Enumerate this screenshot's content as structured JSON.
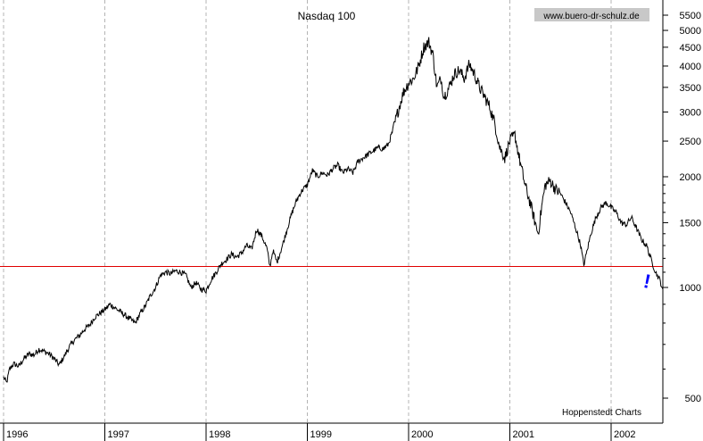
{
  "chart_data": {
    "type": "line",
    "title": "Nasdaq 100",
    "watermark": "www.buero-dr-schulz.de",
    "source": "Hoppenstedt Charts",
    "y_scale": "log",
    "ylim": [
      450,
      6000
    ],
    "xlim": [
      1996.0,
      2002.52
    ],
    "y_ticks": [
      500,
      1000,
      1500,
      2000,
      2500,
      3000,
      3500,
      4000,
      4500,
      5000,
      5500
    ],
    "x_ticks": [
      {
        "label": "1996",
        "year": 1996
      },
      {
        "label": "1997",
        "year": 1997
      },
      {
        "label": "1998",
        "year": 1998
      },
      {
        "label": "1999",
        "year": 1999
      },
      {
        "label": "2000",
        "year": 2000
      },
      {
        "label": "2001",
        "year": 2001
      },
      {
        "label": "2002",
        "year": 2002
      }
    ],
    "grid": "vertical dashed at year boundaries",
    "series": [
      {
        "color": "#000000",
        "points": [
          [
            1996.0,
            570
          ],
          [
            1996.03,
            550
          ],
          [
            1996.06,
            600
          ],
          [
            1996.1,
            620
          ],
          [
            1996.15,
            610
          ],
          [
            1996.2,
            640
          ],
          [
            1996.25,
            660
          ],
          [
            1996.3,
            655
          ],
          [
            1996.35,
            680
          ],
          [
            1996.4,
            670
          ],
          [
            1996.45,
            660
          ],
          [
            1996.5,
            640
          ],
          [
            1996.55,
            615
          ],
          [
            1996.6,
            650
          ],
          [
            1996.65,
            690
          ],
          [
            1996.7,
            720
          ],
          [
            1996.75,
            740
          ],
          [
            1996.8,
            770
          ],
          [
            1996.85,
            790
          ],
          [
            1996.9,
            830
          ],
          [
            1996.95,
            850
          ],
          [
            1997.0,
            870
          ],
          [
            1997.05,
            900
          ],
          [
            1997.1,
            880
          ],
          [
            1997.15,
            860
          ],
          [
            1997.2,
            840
          ],
          [
            1997.25,
            820
          ],
          [
            1997.3,
            800
          ],
          [
            1997.35,
            850
          ],
          [
            1997.4,
            890
          ],
          [
            1997.45,
            950
          ],
          [
            1997.5,
            1000
          ],
          [
            1997.55,
            1080
          ],
          [
            1997.6,
            1100
          ],
          [
            1997.65,
            1090
          ],
          [
            1997.7,
            1110
          ],
          [
            1997.75,
            1100
          ],
          [
            1997.8,
            1080
          ],
          [
            1997.85,
            1000
          ],
          [
            1997.9,
            1030
          ],
          [
            1997.95,
            990
          ],
          [
            1998.0,
            980
          ],
          [
            1998.05,
            1050
          ],
          [
            1998.1,
            1100
          ],
          [
            1998.15,
            1160
          ],
          [
            1998.2,
            1190
          ],
          [
            1998.25,
            1230
          ],
          [
            1998.3,
            1210
          ],
          [
            1998.35,
            1240
          ],
          [
            1998.4,
            1300
          ],
          [
            1998.45,
            1270
          ],
          [
            1998.5,
            1440
          ],
          [
            1998.55,
            1380
          ],
          [
            1998.6,
            1280
          ],
          [
            1998.63,
            1140
          ],
          [
            1998.66,
            1260
          ],
          [
            1998.7,
            1170
          ],
          [
            1998.75,
            1290
          ],
          [
            1998.8,
            1440
          ],
          [
            1998.85,
            1600
          ],
          [
            1998.9,
            1740
          ],
          [
            1998.95,
            1840
          ],
          [
            1999.0,
            1900
          ],
          [
            1999.05,
            2080
          ],
          [
            1999.1,
            2000
          ],
          [
            1999.15,
            2050
          ],
          [
            1999.2,
            2020
          ],
          [
            1999.25,
            2100
          ],
          [
            1999.3,
            2150
          ],
          [
            1999.35,
            2050
          ],
          [
            1999.4,
            2100
          ],
          [
            1999.45,
            2050
          ],
          [
            1999.5,
            2200
          ],
          [
            1999.55,
            2250
          ],
          [
            1999.6,
            2300
          ],
          [
            1999.65,
            2350
          ],
          [
            1999.7,
            2400
          ],
          [
            1999.75,
            2380
          ],
          [
            1999.8,
            2450
          ],
          [
            1999.85,
            2700
          ],
          [
            1999.9,
            3050
          ],
          [
            1999.95,
            3400
          ],
          [
            2000.0,
            3600
          ],
          [
            2000.05,
            3700
          ],
          [
            2000.1,
            4000
          ],
          [
            2000.15,
            4500
          ],
          [
            2000.2,
            4650
          ],
          [
            2000.24,
            4300
          ],
          [
            2000.28,
            3500
          ],
          [
            2000.32,
            3700
          ],
          [
            2000.35,
            3300
          ],
          [
            2000.4,
            3500
          ],
          [
            2000.45,
            3800
          ],
          [
            2000.5,
            3900
          ],
          [
            2000.55,
            3700
          ],
          [
            2000.6,
            4050
          ],
          [
            2000.65,
            3800
          ],
          [
            2000.7,
            3500
          ],
          [
            2000.75,
            3300
          ],
          [
            2000.8,
            3100
          ],
          [
            2000.85,
            2800
          ],
          [
            2000.9,
            2400
          ],
          [
            2000.95,
            2250
          ],
          [
            2001.0,
            2500
          ],
          [
            2001.05,
            2600
          ],
          [
            2001.1,
            2200
          ],
          [
            2001.15,
            1900
          ],
          [
            2001.2,
            1700
          ],
          [
            2001.25,
            1500
          ],
          [
            2001.28,
            1400
          ],
          [
            2001.32,
            1700
          ],
          [
            2001.35,
            1900
          ],
          [
            2001.4,
            1950
          ],
          [
            2001.45,
            1850
          ],
          [
            2001.5,
            1800
          ],
          [
            2001.55,
            1700
          ],
          [
            2001.6,
            1600
          ],
          [
            2001.65,
            1450
          ],
          [
            2001.7,
            1300
          ],
          [
            2001.73,
            1150
          ],
          [
            2001.76,
            1250
          ],
          [
            2001.8,
            1400
          ],
          [
            2001.85,
            1550
          ],
          [
            2001.9,
            1650
          ],
          [
            2001.95,
            1700
          ],
          [
            2002.0,
            1650
          ],
          [
            2002.05,
            1600
          ],
          [
            2002.1,
            1500
          ],
          [
            2002.15,
            1480
          ],
          [
            2002.2,
            1550
          ],
          [
            2002.25,
            1450
          ],
          [
            2002.3,
            1350
          ],
          [
            2002.35,
            1300
          ],
          [
            2002.4,
            1180
          ],
          [
            2002.44,
            1100
          ],
          [
            2002.48,
            1050
          ],
          [
            2002.51,
            990
          ]
        ]
      }
    ],
    "reference_line": {
      "value": 1140,
      "color": "#e00000"
    },
    "annotation": {
      "text": "!",
      "color": "#0000ff",
      "x": 2002.35,
      "y": 1020
    }
  }
}
